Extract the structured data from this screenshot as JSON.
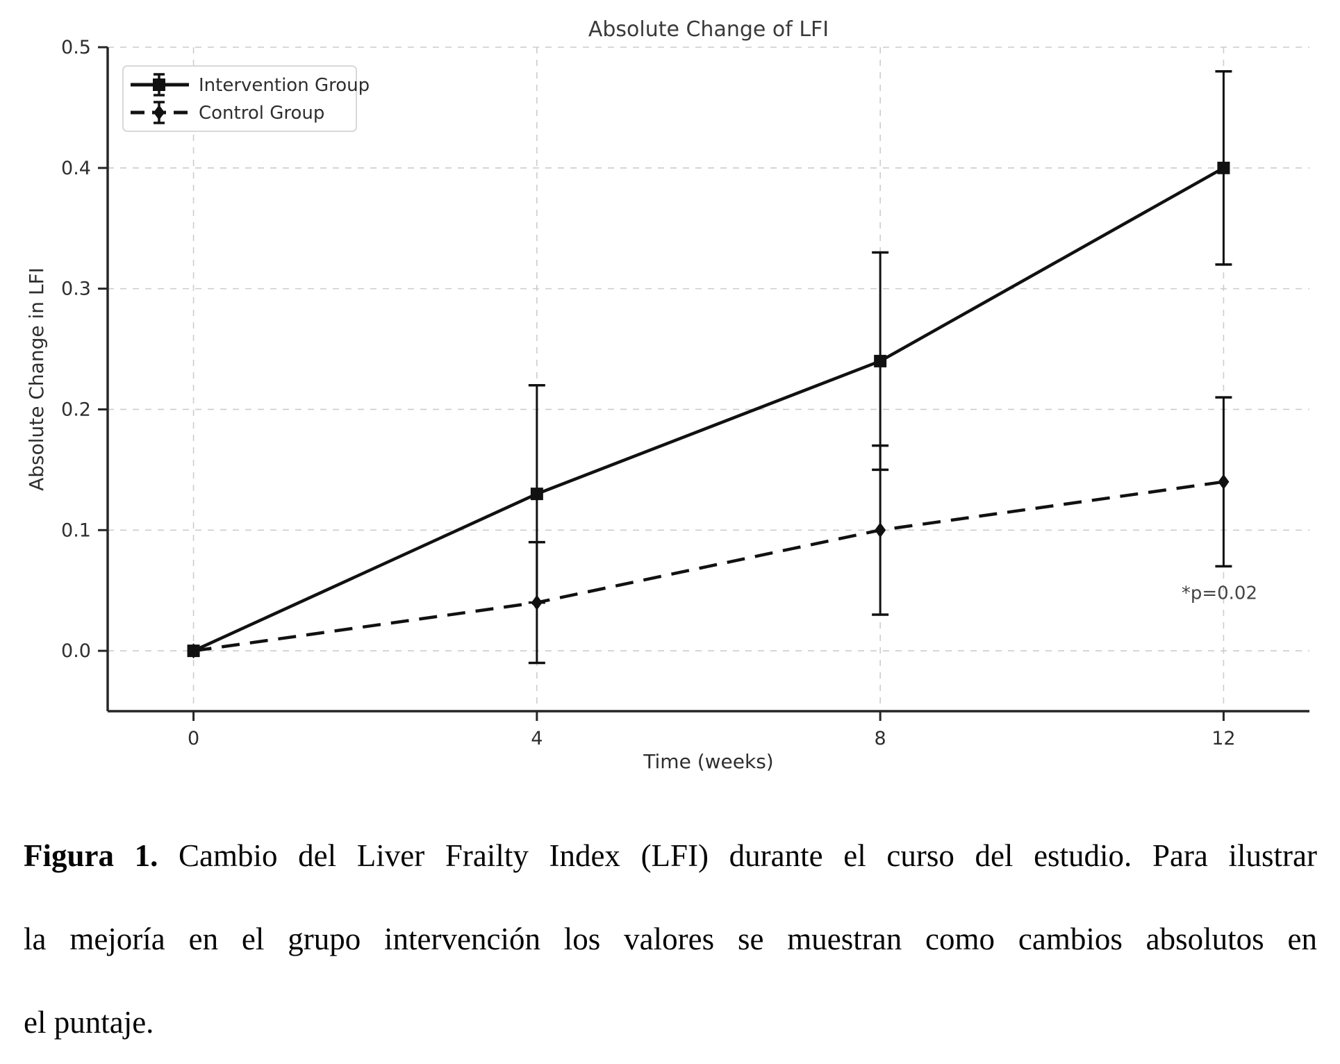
{
  "chart_data": {
    "type": "line",
    "title": "Absolute Change of LFI",
    "xlabel": "Time (weeks)",
    "ylabel": "Absolute Change in LFI",
    "x": [
      0,
      4,
      8,
      12
    ],
    "xlim": [
      -1,
      13
    ],
    "ylim": [
      -0.05,
      0.5
    ],
    "xticks": [
      0,
      4,
      8,
      12
    ],
    "xtick_labels": [
      "0",
      "4",
      "8",
      "12"
    ],
    "yticks": [
      0.0,
      0.1,
      0.2,
      0.3,
      0.4,
      0.5
    ],
    "ytick_labels": [
      "0.0",
      "0.1",
      "0.2",
      "0.3",
      "0.4",
      "0.5"
    ],
    "grid": "dashed-both-axes",
    "legend_position": "upper left",
    "series": [
      {
        "name": "Intervention Group",
        "values": [
          0.0,
          0.13,
          0.24,
          0.4
        ],
        "errors": [
          0.0,
          0.09,
          0.09,
          0.08
        ],
        "marker": "square",
        "line": "solid",
        "color": "#111111"
      },
      {
        "name": "Control Group",
        "values": [
          0.0,
          0.04,
          0.1,
          0.14
        ],
        "errors": [
          0.0,
          0.05,
          0.07,
          0.07
        ],
        "marker": "diamond",
        "line": "dashed",
        "color": "#111111"
      }
    ],
    "annotation": {
      "text": "*p=0.02",
      "x": 12,
      "y": 0.048
    }
  },
  "figure_colors": {
    "line": "#111111",
    "grid": "#cccccc",
    "spine": "#262626",
    "text": "#2e2e2e",
    "title": "#3a3a3a",
    "annotation": "#444444",
    "legend_border": "#d8d8d8",
    "legend_bg": "#ffffff"
  },
  "caption": {
    "label": "Figura 1.",
    "line1_rest": " Cambio del Liver Frailty Index (LFI) durante el curso del estudio. Para ilustrar",
    "line2": "la mejoría en el grupo intervención los valores se muestran como cambios absolutos en",
    "line3": "el puntaje."
  }
}
